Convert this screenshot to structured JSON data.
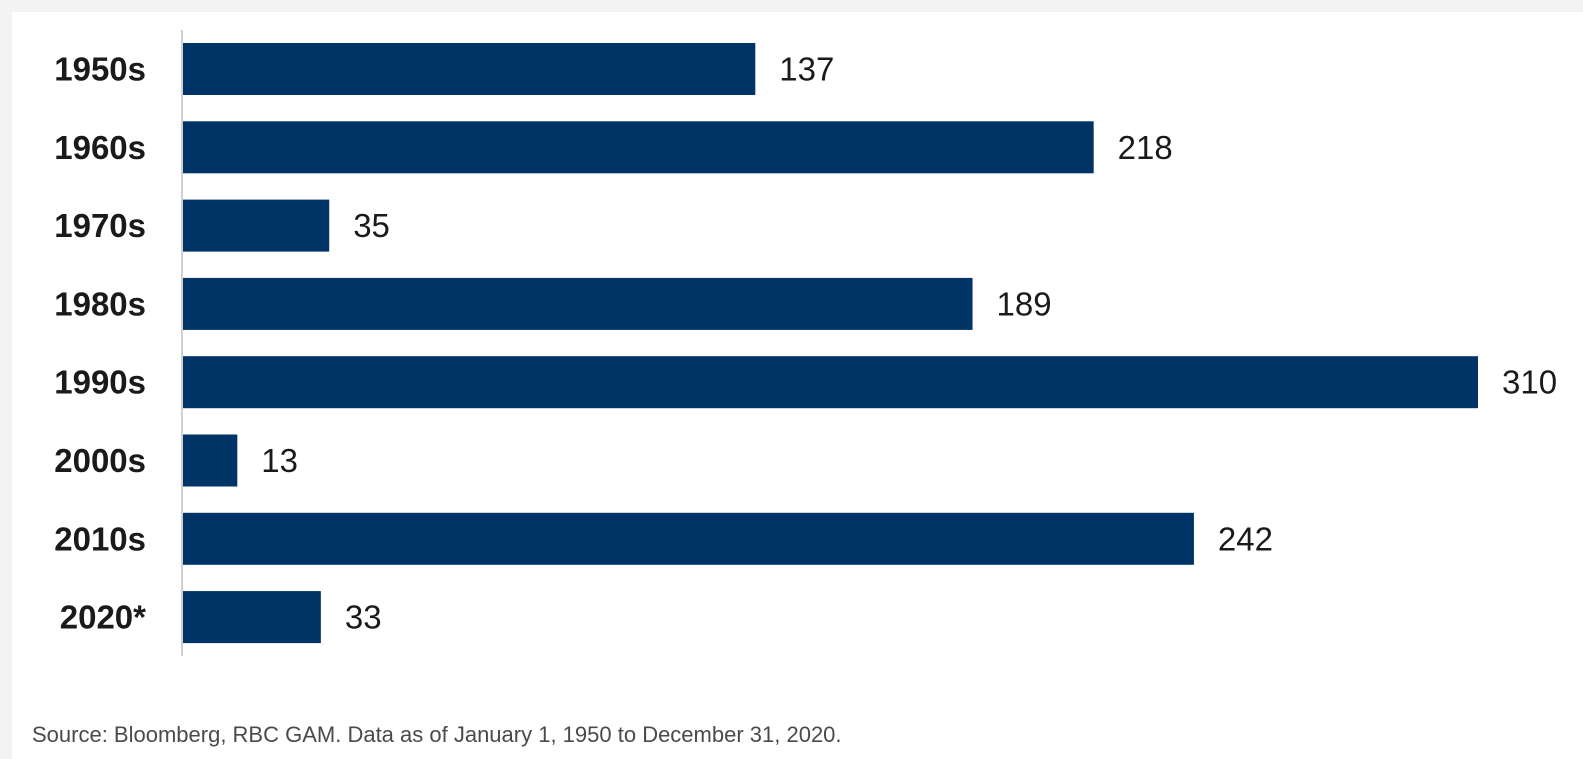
{
  "chart_data": {
    "type": "bar",
    "orientation": "horizontal",
    "categories": [
      "1950s",
      "1960s",
      "1970s",
      "1980s",
      "1990s",
      "2000s",
      "2010s",
      "2020*"
    ],
    "values": [
      137,
      218,
      35,
      189,
      310,
      13,
      242,
      33
    ],
    "data_labels": [
      "137",
      "218",
      "35",
      "189",
      "310",
      "13",
      "242",
      "33"
    ],
    "title": "",
    "xlabel": "",
    "ylabel": "",
    "xlim": [
      0,
      310
    ],
    "grid": false,
    "legend": "none",
    "bar_color": "#003366"
  },
  "source_note": "Source: Bloomberg, RBC GAM. Data as of January 1, 1950 to December 31, 2020."
}
